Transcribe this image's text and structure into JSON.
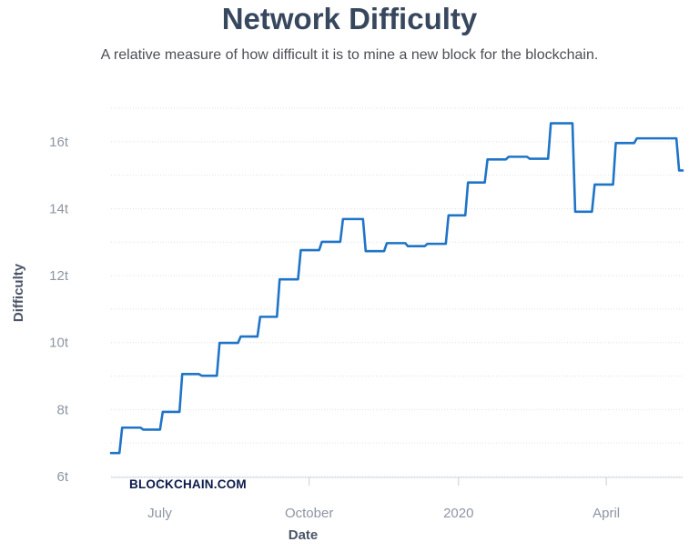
{
  "chart_data": {
    "type": "line",
    "title": "Network Difficulty",
    "subtitle": "A relative measure of how difficult it is to mine a new block for the blockchain.",
    "xlabel": "Date",
    "ylabel": "Difficulty",
    "watermark": "BLOCKCHAIN.COM",
    "grid": true,
    "line_color": "#1f74c7",
    "xlim": [
      "2019-06-01",
      "2020-05-18"
    ],
    "ylim": [
      6,
      17
    ],
    "x_ticks": [
      {
        "label": "July",
        "date": "2019-07-01"
      },
      {
        "label": "October",
        "date": "2019-10-01"
      },
      {
        "label": "2020",
        "date": "2020-01-01"
      },
      {
        "label": "April",
        "date": "2020-04-01"
      }
    ],
    "y_ticks": [
      {
        "label": "6t",
        "value": 6
      },
      {
        "label": "8t",
        "value": 8
      },
      {
        "label": "10t",
        "value": 10
      },
      {
        "label": "12t",
        "value": 12
      },
      {
        "label": "14t",
        "value": 14
      },
      {
        "label": "16t",
        "value": 16
      }
    ],
    "series": [
      {
        "unit": "t",
        "points": [
          {
            "x": "2019-06-01",
            "y": 6.7
          },
          {
            "x": "2019-06-07",
            "y": 7.46
          },
          {
            "x": "2019-06-20",
            "y": 7.4
          },
          {
            "x": "2019-07-02",
            "y": 7.93
          },
          {
            "x": "2019-07-14",
            "y": 9.06
          },
          {
            "x": "2019-07-26",
            "y": 9.01
          },
          {
            "x": "2019-08-06",
            "y": 9.99
          },
          {
            "x": "2019-08-19",
            "y": 10.18
          },
          {
            "x": "2019-08-31",
            "y": 10.77
          },
          {
            "x": "2019-09-12",
            "y": 11.89
          },
          {
            "x": "2019-09-25",
            "y": 12.76
          },
          {
            "x": "2019-10-08",
            "y": 13.01
          },
          {
            "x": "2019-10-21",
            "y": 13.69
          },
          {
            "x": "2019-11-04",
            "y": 12.73
          },
          {
            "x": "2019-11-17",
            "y": 12.97
          },
          {
            "x": "2019-11-30",
            "y": 12.88
          },
          {
            "x": "2019-12-12",
            "y": 12.95
          },
          {
            "x": "2019-12-25",
            "y": 13.8
          },
          {
            "x": "2020-01-06",
            "y": 14.78
          },
          {
            "x": "2020-01-18",
            "y": 15.47
          },
          {
            "x": "2020-01-31",
            "y": 15.55
          },
          {
            "x": "2020-02-13",
            "y": 15.49
          },
          {
            "x": "2020-02-26",
            "y": 16.55
          },
          {
            "x": "2020-03-12",
            "y": 13.91
          },
          {
            "x": "2020-03-24",
            "y": 14.72
          },
          {
            "x": "2020-04-06",
            "y": 15.96
          },
          {
            "x": "2020-04-19",
            "y": 16.1
          },
          {
            "x": "2020-05-15",
            "y": 15.14
          }
        ]
      }
    ]
  }
}
